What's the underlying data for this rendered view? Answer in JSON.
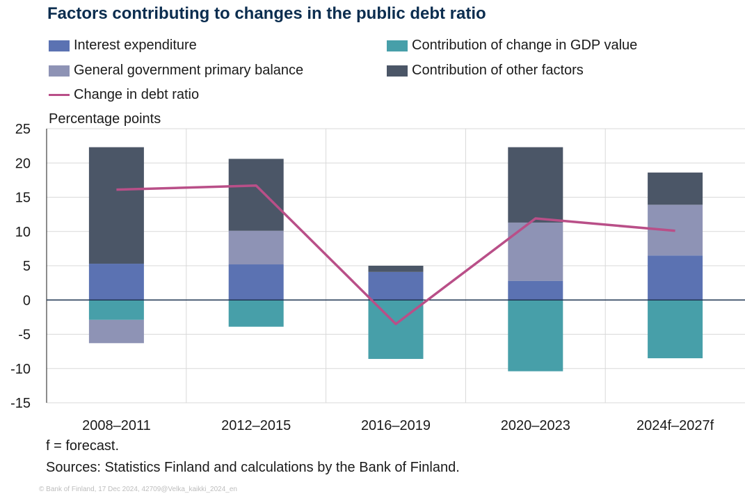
{
  "title": "Factors contributing to changes in the public debt ratio",
  "legend": {
    "interest": "Interest expenditure",
    "gdp": "Contribution of change in GDP value",
    "primary": "General government primary balance",
    "other": "Contribution of other factors",
    "line": "Change in debt ratio"
  },
  "colors": {
    "interest": "#5b72b2",
    "gdp": "#479fa9",
    "primary": "#8e93b5",
    "other": "#4b5667",
    "line": "#b94f88",
    "title": "#0b2d4f"
  },
  "unit_label": "Percentage points",
  "notes": {
    "forecast": "f = forecast.",
    "sources": "Sources: Statistics Finland and calculations by the Bank of Finland."
  },
  "copyright": "© Bank of Finland, 17 Dec 2024, 42709@Velka_kaikki_2024_en",
  "chart_data": {
    "type": "bar",
    "stacked": true,
    "categories": [
      "2008–2011",
      "2012–2015",
      "2016–2019",
      "2020–2023",
      "2024f–2027f"
    ],
    "series": [
      {
        "key": "interest",
        "name": "Interest expenditure",
        "values": [
          5.3,
          5.2,
          4.1,
          2.8,
          6.5
        ]
      },
      {
        "key": "gdp",
        "name": "Contribution of change in GDP value",
        "values": [
          -2.9,
          -3.9,
          -8.6,
          -10.4,
          -8.5
        ]
      },
      {
        "key": "primary",
        "name": "General government primary balance",
        "values": [
          -3.4,
          4.9,
          0.0,
          8.5,
          7.4
        ]
      },
      {
        "key": "other",
        "name": "Contribution of other factors",
        "values": [
          17.0,
          10.5,
          0.9,
          11.0,
          4.7
        ]
      }
    ],
    "line": {
      "name": "Change in debt ratio",
      "values": [
        16.1,
        16.7,
        -3.5,
        11.9,
        10.1
      ]
    },
    "ylim": [
      -15,
      25
    ],
    "yticks": [
      -15,
      -10,
      -5,
      0,
      5,
      10,
      15,
      20,
      25
    ],
    "ylabel": "Percentage points",
    "legend_position": "top",
    "grid": true
  }
}
